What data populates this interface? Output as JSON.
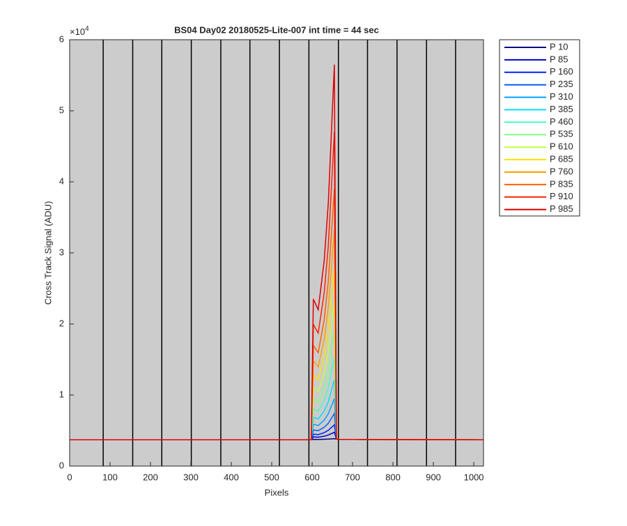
{
  "chart_data": {
    "type": "line",
    "title": "BS04 Day02 20180525-Lite-007 int time = 44 sec",
    "x_label": "Pixels",
    "y_label": "Cross Track Signal (ADU)",
    "y_multiplier": {
      "base": "×10",
      "exponent": "4"
    },
    "xlim": [
      0,
      1024
    ],
    "ylim": [
      0,
      60000
    ],
    "xticks": [
      0,
      100,
      200,
      300,
      400,
      500,
      600,
      700,
      800,
      900,
      1000
    ],
    "yticks": [
      {
        "value": 0,
        "label": "0"
      },
      {
        "value": 10000,
        "label": "1"
      },
      {
        "value": 20000,
        "label": "2"
      },
      {
        "value": 30000,
        "label": "3"
      },
      {
        "value": 40000,
        "label": "4"
      },
      {
        "value": 50000,
        "label": "5"
      },
      {
        "value": 60000,
        "label": "6"
      }
    ],
    "vertical_lines": [
      83,
      156,
      228,
      301,
      374,
      446,
      519,
      592,
      665,
      737,
      810,
      883,
      955
    ],
    "background": "#cccccc",
    "legend_position": "outside-right",
    "x": [
      0,
      598,
      603,
      615,
      630,
      640,
      650,
      655,
      660,
      665,
      1024
    ],
    "series": [
      {
        "name": "P 10",
        "color": "#000080",
        "values": [
          3700,
          3700,
          3760,
          3750,
          3780,
          3800,
          3840,
          3860,
          3800,
          3750,
          3700
        ]
      },
      {
        "name": "P 85",
        "color": "#0000c8",
        "values": [
          3700,
          3700,
          4100,
          4070,
          4210,
          4370,
          4630,
          4760,
          3800,
          3750,
          3700
        ]
      },
      {
        "name": "P 160",
        "color": "#0020ff",
        "values": [
          3700,
          3700,
          4490,
          4430,
          4710,
          5030,
          5550,
          5810,
          3800,
          3750,
          3700
        ]
      },
      {
        "name": "P 235",
        "color": "#0060ff",
        "values": [
          3700,
          3700,
          5090,
          4980,
          5470,
          6030,
          6940,
          7400,
          3800,
          3750,
          3700
        ]
      },
      {
        "name": "P 310",
        "color": "#00a0ff",
        "values": [
          3700,
          3700,
          5880,
          5710,
          6480,
          7360,
          8790,
          9510,
          3800,
          3750,
          3700
        ]
      },
      {
        "name": "P 385",
        "color": "#00e0ff",
        "values": [
          3700,
          3700,
          6870,
          6630,
          7750,
          9030,
          11110,
          12150,
          3800,
          3750,
          3700
        ]
      },
      {
        "name": "P 460",
        "color": "#40ffc0",
        "values": [
          3700,
          3700,
          8060,
          7730,
          9270,
          11030,
          13890,
          15320,
          3800,
          3750,
          3700
        ]
      },
      {
        "name": "P 535",
        "color": "#80ff80",
        "values": [
          3700,
          3700,
          9440,
          9010,
          11040,
          13360,
          17130,
          19010,
          3800,
          3750,
          3700
        ]
      },
      {
        "name": "P 610",
        "color": "#c0ff40",
        "values": [
          3700,
          3700,
          11030,
          10470,
          13060,
          16020,
          20830,
          23240,
          3800,
          3750,
          3700
        ]
      },
      {
        "name": "P 685",
        "color": "#ffe000",
        "values": [
          3700,
          3700,
          12810,
          12120,
          15340,
          19020,
          25000,
          27990,
          3800,
          3750,
          3700
        ]
      },
      {
        "name": "P 760",
        "color": "#ffa000",
        "values": [
          3700,
          3700,
          14790,
          13950,
          17870,
          22350,
          29630,
          33270,
          3800,
          3750,
          3700
        ]
      },
      {
        "name": "P 835",
        "color": "#ff6000",
        "values": [
          3700,
          3700,
          16970,
          15960,
          20650,
          26010,
          34720,
          39080,
          3800,
          3750,
          3700
        ]
      },
      {
        "name": "P 910",
        "color": "#ff2000",
        "values": [
          3700,
          3700,
          19940,
          18710,
          24450,
          31010,
          41670,
          47000,
          3800,
          3750,
          3700
        ]
      },
      {
        "name": "P 985",
        "color": "#e00000",
        "values": [
          3700,
          3700,
          23500,
          22000,
          29000,
          37000,
          50000,
          56500,
          3800,
          3750,
          3700
        ]
      }
    ]
  }
}
